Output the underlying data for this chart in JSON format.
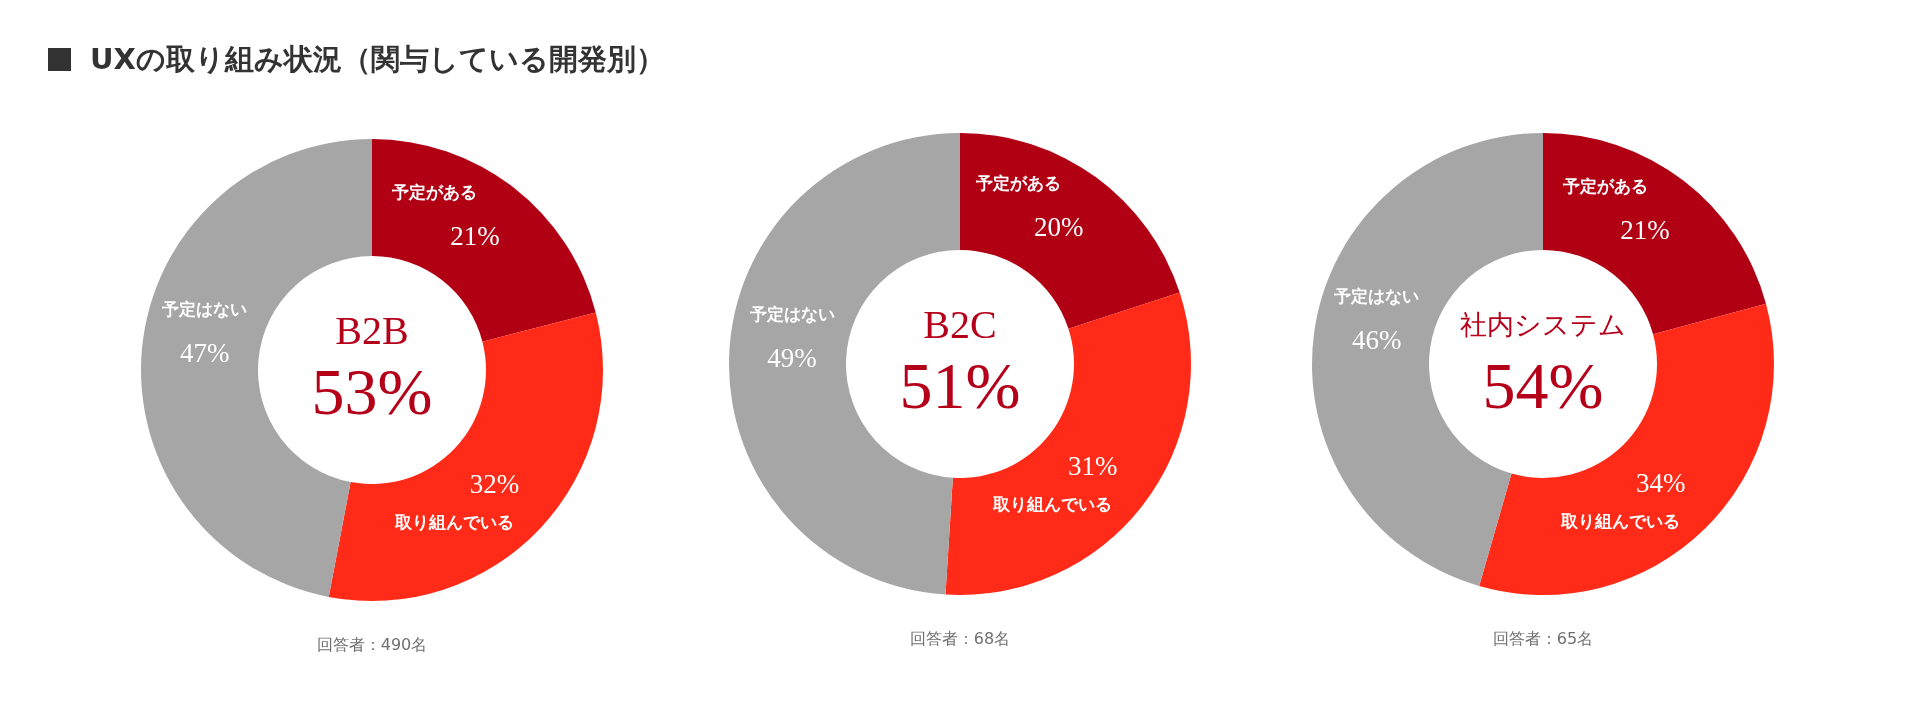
{
  "chart_data": [
    {
      "type": "other",
      "title": "UXの取り組み状況（関与している開発別）"
    },
    {
      "type": "donut",
      "title": "B2B",
      "subtitle": "53%",
      "categories": [
        "予定がある",
        "取り組んでいる",
        "予定はない"
      ],
      "values": [
        21,
        32,
        47
      ],
      "value_labels": [
        "21%",
        "32%",
        "47%"
      ],
      "colors": [
        "#b10014",
        "#ff2a17",
        "#a6a6a6"
      ],
      "annotations": [
        "回答者：490名"
      ]
    },
    {
      "type": "donut",
      "title": "B2C",
      "subtitle": "51%",
      "categories": [
        "予定がある",
        "取り組んでいる",
        "予定はない"
      ],
      "values": [
        20,
        31,
        49
      ],
      "value_labels": [
        "20%",
        "31%",
        "49%"
      ],
      "colors": [
        "#b10014",
        "#ff2a17",
        "#a6a6a6"
      ],
      "annotations": [
        "回答者：68名"
      ]
    },
    {
      "type": "donut",
      "title": "社内システム",
      "subtitle": "54%",
      "categories": [
        "予定がある",
        "取り組んでいる",
        "予定はない"
      ],
      "values": [
        21,
        34,
        46
      ],
      "value_labels": [
        "21%",
        "34%",
        "46%"
      ],
      "colors": [
        "#b10014",
        "#ff2a17",
        "#a6a6a6"
      ],
      "annotations": [
        "回答者：65名"
      ]
    }
  ]
}
